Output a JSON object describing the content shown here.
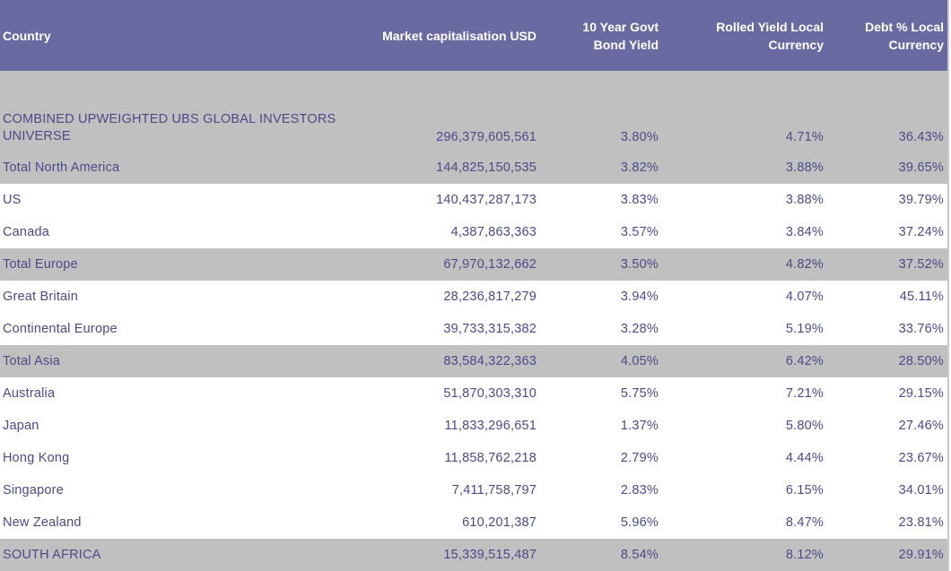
{
  "table": {
    "headers": [
      "Country",
      "Market capitalisation USD",
      "10 Year Govt Bond Yield",
      "Rolled Yield Local Currency",
      "Debt % Local Currency"
    ],
    "rows": [
      {
        "shade": true,
        "country": "COMBINED UPWEIGHTED UBS GLOBAL INVESTORS UNIVERSE",
        "market_cap": "296,379,605,561",
        "bond_yield": "3.80%",
        "rolled_yield": "4.71%",
        "debt_pct": "36.43%"
      },
      {
        "shade": true,
        "country": "Total North America",
        "market_cap": "144,825,150,535",
        "bond_yield": "3.82%",
        "rolled_yield": "3.88%",
        "debt_pct": "39.65%"
      },
      {
        "shade": false,
        "country": "US",
        "market_cap": "140,437,287,173",
        "bond_yield": "3.83%",
        "rolled_yield": "3.88%",
        "debt_pct": "39.79%"
      },
      {
        "shade": false,
        "country": "Canada",
        "market_cap": "4,387,863,363",
        "bond_yield": "3.57%",
        "rolled_yield": "3.84%",
        "debt_pct": "37.24%"
      },
      {
        "shade": true,
        "country": "Total Europe",
        "market_cap": "67,970,132,662",
        "bond_yield": "3.50%",
        "rolled_yield": "4.82%",
        "debt_pct": "37.52%"
      },
      {
        "shade": false,
        "country": "Great Britain",
        "market_cap": "28,236,817,279",
        "bond_yield": "3.94%",
        "rolled_yield": "4.07%",
        "debt_pct": "45.11%"
      },
      {
        "shade": false,
        "country": "Continental Europe",
        "market_cap": "39,733,315,382",
        "bond_yield": "3.28%",
        "rolled_yield": "5.19%",
        "debt_pct": "33.76%"
      },
      {
        "shade": true,
        "country": "Total Asia",
        "market_cap": "83,584,322,363",
        "bond_yield": "4.05%",
        "rolled_yield": "6.42%",
        "debt_pct": "28.50%"
      },
      {
        "shade": false,
        "country": "Australia",
        "market_cap": "51,870,303,310",
        "bond_yield": "5.75%",
        "rolled_yield": "7.21%",
        "debt_pct": "29.15%"
      },
      {
        "shade": false,
        "country": "Japan",
        "market_cap": "11,833,296,651",
        "bond_yield": "1.37%",
        "rolled_yield": "5.80%",
        "debt_pct": "27.46%"
      },
      {
        "shade": false,
        "country": "Hong Kong",
        "market_cap": "11,858,762,218",
        "bond_yield": "2.79%",
        "rolled_yield": "4.44%",
        "debt_pct": "23.67%"
      },
      {
        "shade": false,
        "country": "Singapore",
        "market_cap": "7,411,758,797",
        "bond_yield": "2.83%",
        "rolled_yield": "6.15%",
        "debt_pct": "34.01%"
      },
      {
        "shade": false,
        "country": "New Zealand",
        "market_cap": "610,201,387",
        "bond_yield": "5.96%",
        "rolled_yield": "8.47%",
        "debt_pct": "23.81%"
      },
      {
        "shade": true,
        "country": "SOUTH AFRICA",
        "market_cap": "15,339,515,487",
        "bond_yield": "8.54%",
        "rolled_yield": "8.12%",
        "debt_pct": "29.91%"
      }
    ]
  },
  "colors": {
    "header_bg": "#6a6aa2",
    "header_text": "#ffffff",
    "shade_bg": "#c0c0c0",
    "body_text": "#4a4a8a"
  }
}
